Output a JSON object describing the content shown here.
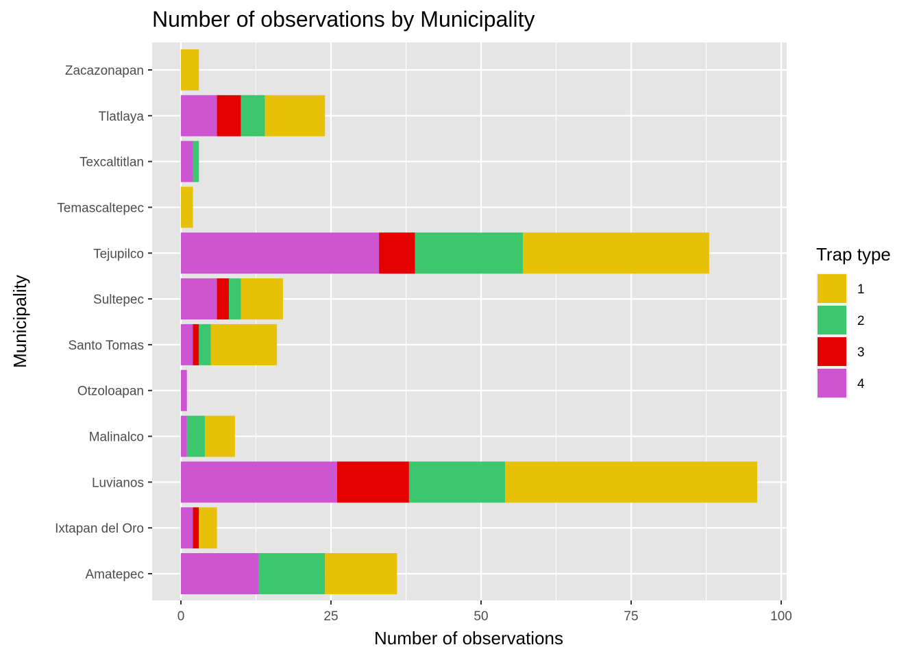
{
  "chart_data": {
    "type": "bar",
    "orientation": "horizontal",
    "stacked": true,
    "title": "Number of observations by Municipality",
    "xlabel": "Number of observations",
    "ylabel": "Municipality",
    "xlim": [
      0,
      100
    ],
    "x_ticks": [
      0,
      25,
      50,
      75,
      100
    ],
    "grid": true,
    "legend_title": "Trap type",
    "legend_position": "right",
    "categories": [
      "Amatepec",
      "Ixtapan del Oro",
      "Luvianos",
      "Malinalco",
      "Otzoloapan",
      "Santo Tomas",
      "Sultepec",
      "Tejupilco",
      "Temascaltepec",
      "Texcaltitlan",
      "Tlatlaya",
      "Zacazonapan"
    ],
    "series": [
      {
        "name": "4",
        "color": "#CE55D2",
        "values": [
          13,
          2,
          26,
          1,
          1,
          2,
          6,
          33,
          0,
          2,
          6,
          0
        ]
      },
      {
        "name": "3",
        "color": "#E50000",
        "values": [
          0,
          1,
          12,
          0,
          0,
          1,
          2,
          6,
          0,
          0,
          4,
          0
        ]
      },
      {
        "name": "2",
        "color": "#3CC66E",
        "values": [
          11,
          0,
          16,
          3,
          0,
          2,
          2,
          18,
          0,
          1,
          4,
          0
        ]
      },
      {
        "name": "1",
        "color": "#E7C108",
        "values": [
          12,
          3,
          42,
          5,
          0,
          11,
          7,
          31,
          2,
          0,
          10,
          3
        ]
      }
    ],
    "legend_order": [
      "1",
      "2",
      "3",
      "4"
    ]
  }
}
